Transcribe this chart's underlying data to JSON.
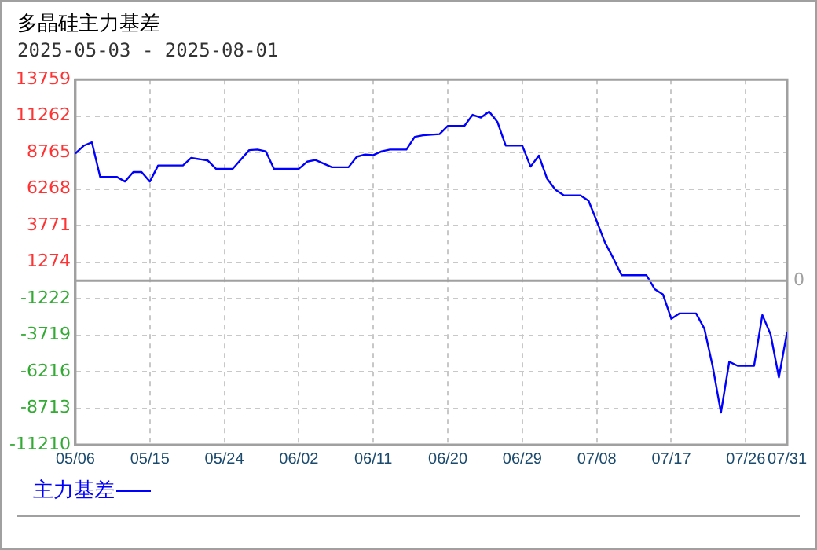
{
  "chart_data": {
    "type": "line",
    "title": "多晶硅主力基差",
    "subtitle": "2025-05-03 - 2025-08-01",
    "x": [
      "--05-06",
      "--05-07",
      "--05-08",
      "--05-09",
      "--05-11",
      "--05-12",
      "--05-13",
      "--05-14",
      "--05-15",
      "--05-16",
      "--05-19",
      "--05-20",
      "--05-22",
      "--05-23",
      "--05-25",
      "--05-27",
      "--05-28",
      "--05-29",
      "--05-30",
      "--06-02",
      "--06-03",
      "--06-04",
      "--06-06",
      "--06-08",
      "--06-09",
      "--06-10",
      "--06-11",
      "--06-12",
      "--06-13",
      "--06-15",
      "--06-16",
      "--06-17",
      "--06-19",
      "--06-20",
      "--06-22",
      "--06-23",
      "--06-24",
      "--06-25",
      "--06-26",
      "--06-27",
      "--06-29",
      "--06-30",
      "--07-01",
      "--07-02",
      "--07-03",
      "--07-04",
      "--07-06",
      "--07-07",
      "--07-08",
      "--07-09",
      "--07-10",
      "--07-11",
      "--07-14",
      "--07-15",
      "--07-16",
      "--07-17",
      "--07-18",
      "--07-20",
      "--07-21",
      "--07-22",
      "--07-23",
      "--07-24",
      "--07-25",
      "--07-27",
      "--07-28",
      "--07-29",
      "--07-30",
      "--07-31"
    ],
    "series": [
      {
        "name": "主力基差",
        "color": "#0000ff",
        "values": [
          8700,
          9230,
          9460,
          7100,
          7100,
          6780,
          7430,
          7430,
          6780,
          7880,
          7880,
          8400,
          8220,
          7650,
          7650,
          8930,
          8970,
          8850,
          7650,
          7650,
          8140,
          8260,
          7760,
          7760,
          8480,
          8630,
          8590,
          8850,
          8970,
          8970,
          9840,
          9950,
          10030,
          10590,
          10590,
          11350,
          11160,
          11570,
          10860,
          9240,
          9240,
          7800,
          8560,
          6970,
          6220,
          5840,
          5840,
          5470,
          4070,
          2600,
          1540,
          380,
          380,
          -570,
          -940,
          -2600,
          -2230,
          -2230,
          -3280,
          -5850,
          -9010,
          -5540,
          -5810,
          -5810,
          -2340,
          -3660,
          -6600,
          -3470
        ]
      }
    ],
    "xlim": [
      "--05-06",
      "--07-31"
    ],
    "xticks": [
      {
        "value": "--05-06",
        "label": "05/06"
      },
      {
        "value": "--05-15",
        "label": "05/15"
      },
      {
        "value": "--05-24",
        "label": "05/24"
      },
      {
        "value": "--06-02",
        "label": "06/02"
      },
      {
        "value": "--06-11",
        "label": "06/11"
      },
      {
        "value": "--06-20",
        "label": "06/20"
      },
      {
        "value": "--06-29",
        "label": "06/29"
      },
      {
        "value": "--07-08",
        "label": "07/08"
      },
      {
        "value": "--07-17",
        "label": "07/17"
      },
      {
        "value": "--07-26",
        "label": "07/26"
      },
      {
        "value": "--07-31",
        "label": "07/31"
      }
    ],
    "ylim": [
      -11210,
      13759
    ],
    "yticks": [
      13759,
      11262,
      8765,
      6268,
      3771,
      1274,
      -1222,
      -3719,
      -6216,
      -8713,
      -11210
    ],
    "ref_lines": [
      {
        "axis": "y",
        "value": 0,
        "label": "0",
        "color": "#a0a0a0"
      }
    ],
    "grid": true,
    "legend": "bottom left",
    "marker": "none",
    "line_style": "solid"
  }
}
